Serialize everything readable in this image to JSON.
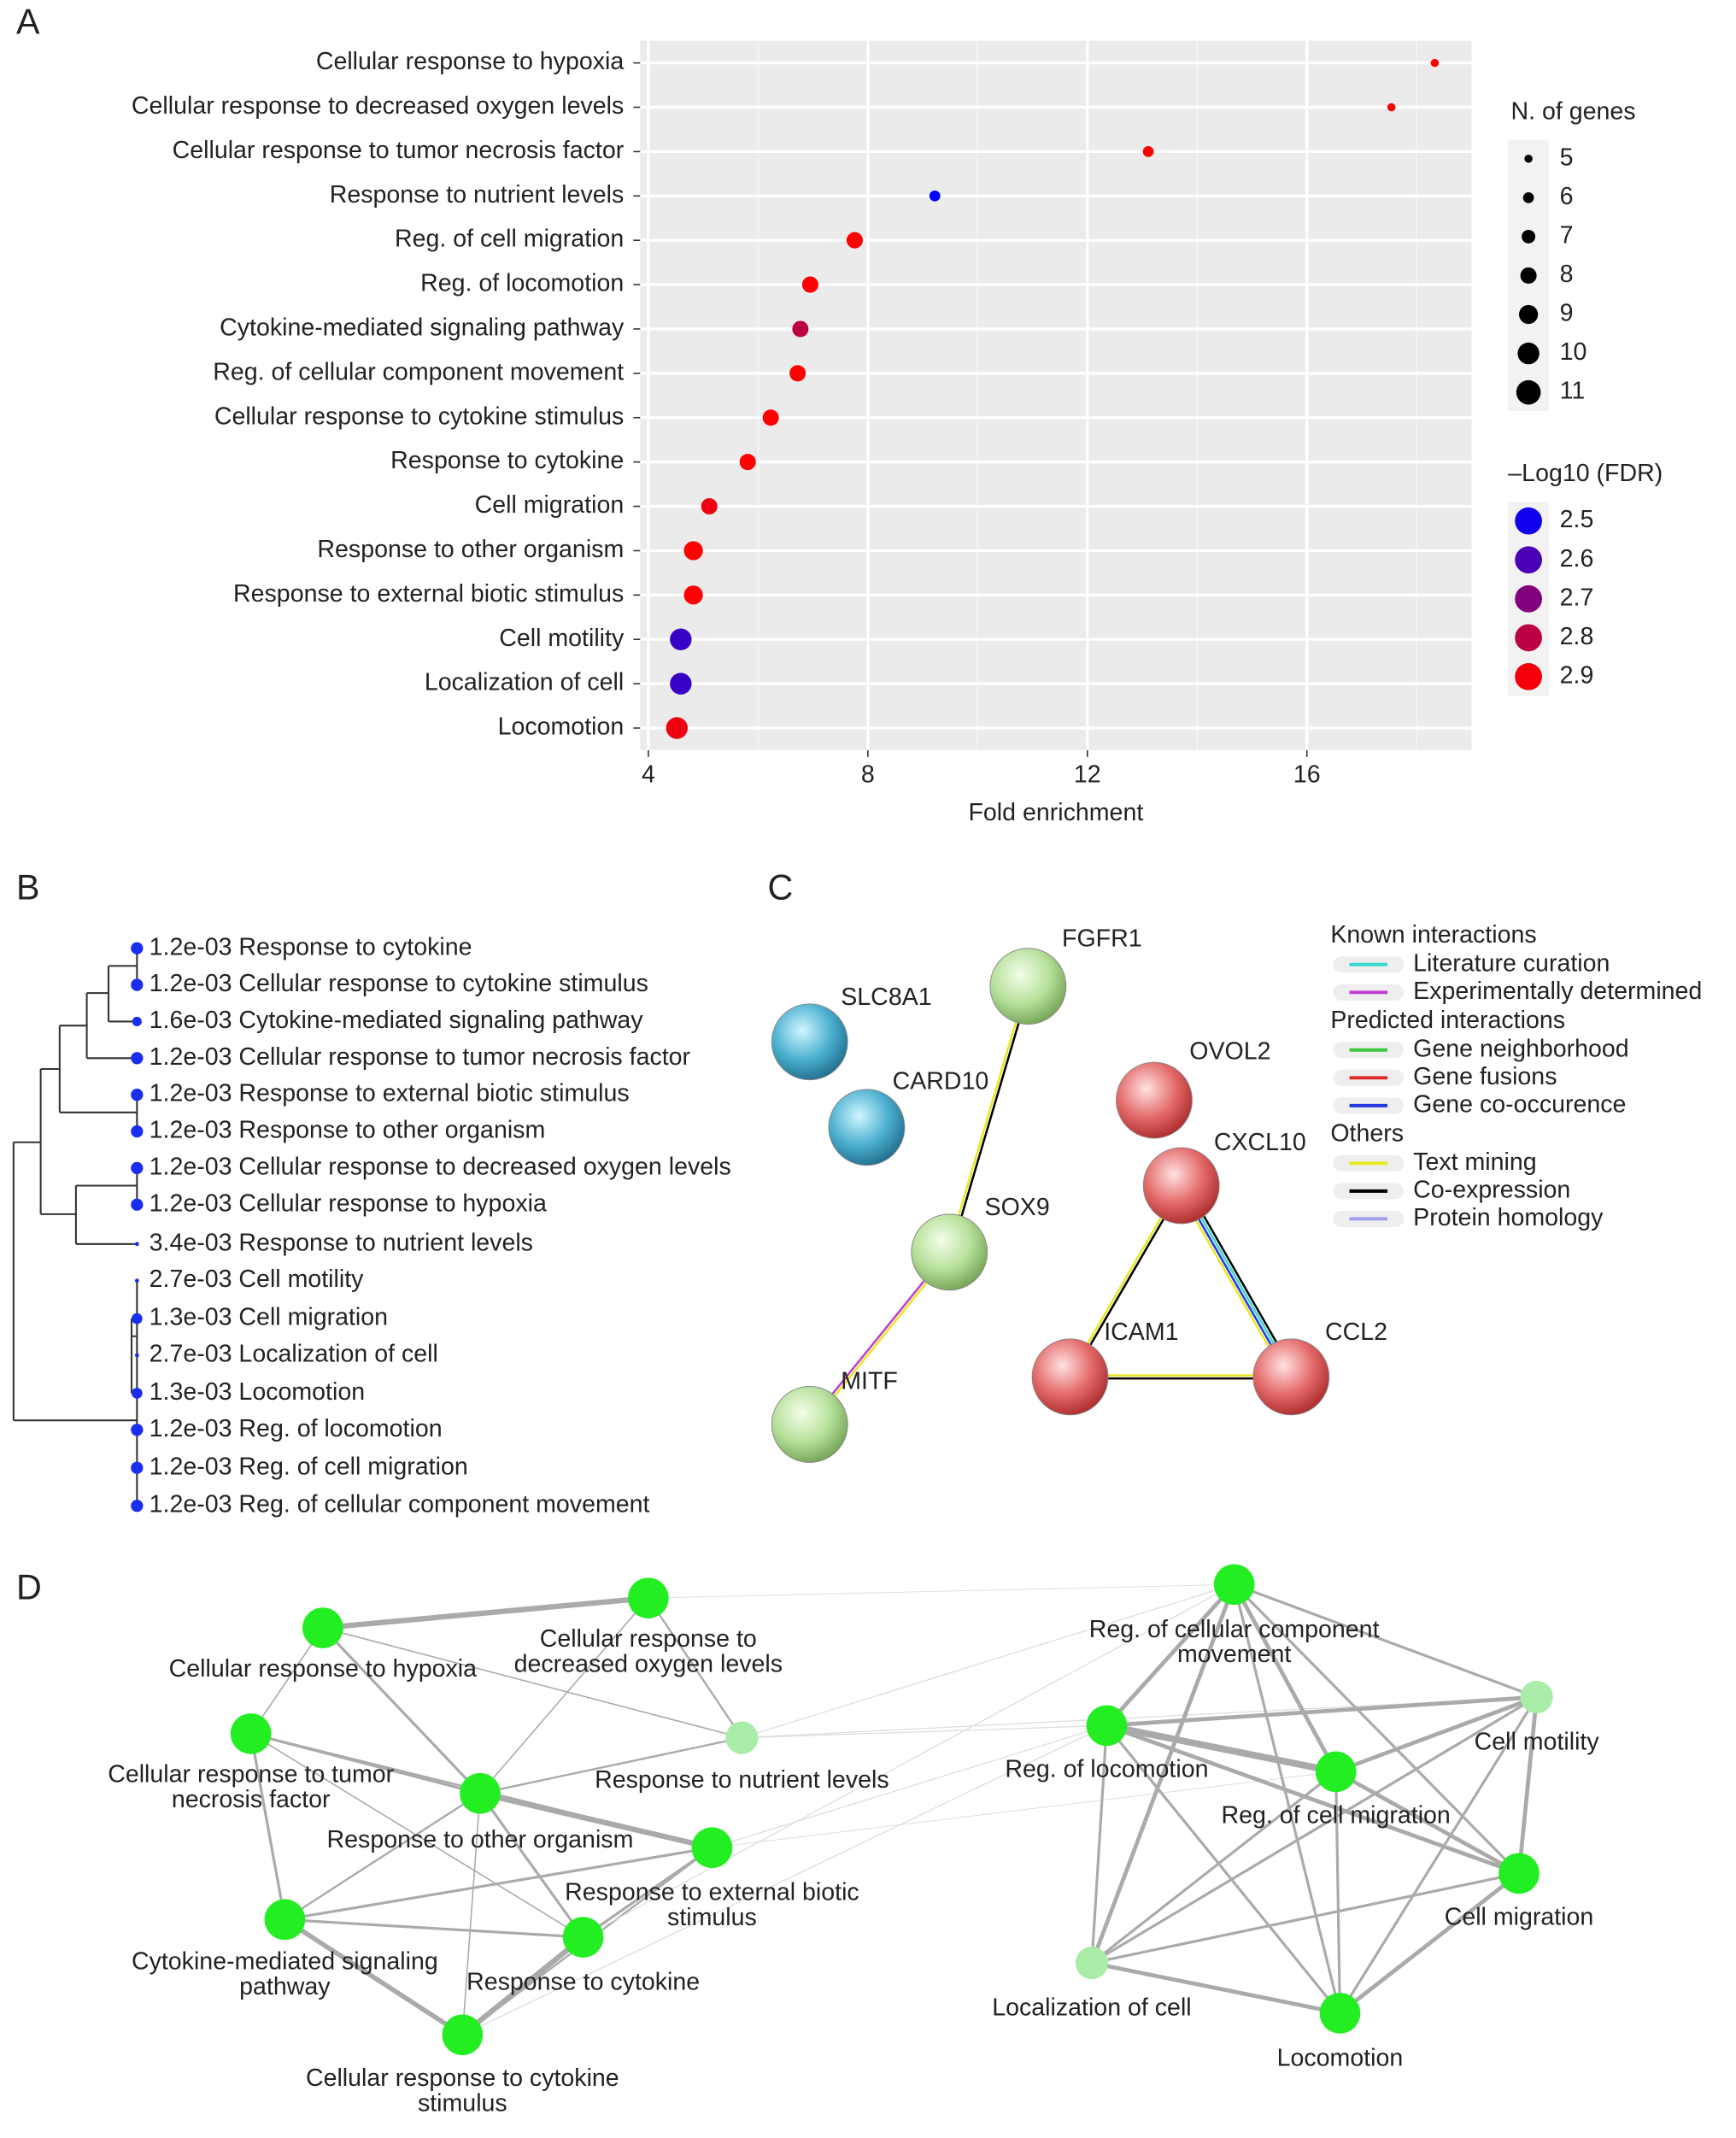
{
  "panel_labels": [
    "A",
    "B",
    "C",
    "D"
  ],
  "chart_data": {
    "type": "dot",
    "categories": [
      "Cellular response to hypoxia",
      "Cellular response to decreased oxygen levels",
      "Cellular response to tumor necrosis factor",
      "Response to nutrient levels",
      "Reg. of cell migration",
      "Reg. of locomotion",
      "Cytokine-mediated signaling pathway",
      "Reg. of cellular component movement",
      "Cellular response to cytokine stimulus",
      "Response to cytokine",
      "Cell migration",
      "Response to other organism",
      "Response to external biotic stimulus",
      "Cell motility",
      "Localization of cell",
      "Locomotion"
    ],
    "x_label": "Fold enrichment",
    "values": [
      18.33,
      17.54,
      13.11,
      9.22,
      7.76,
      6.95,
      6.77,
      6.72,
      6.23,
      5.81,
      5.11,
      4.82,
      4.82,
      4.59,
      4.59,
      4.52
    ],
    "sizes": [
      5,
      5,
      6,
      6,
      8,
      8,
      8,
      8,
      8,
      8,
      8,
      9,
      9,
      10,
      10,
      10
    ],
    "color_values": [
      2.92,
      2.92,
      2.92,
      2.47,
      2.92,
      2.92,
      2.8,
      2.92,
      2.92,
      2.92,
      2.89,
      2.92,
      2.92,
      2.57,
      2.57,
      2.89
    ],
    "color_low": "#0000ff",
    "color_high": "#ff0000",
    "size_legend": {
      "title": "N. of genes",
      "values": [
        5,
        6,
        7,
        8,
        9,
        10,
        11
      ]
    },
    "color_legend": {
      "title": "–Log10 (FDR)",
      "values": [
        2.5,
        2.6,
        2.7,
        2.8,
        2.9
      ]
    },
    "xlim": [
      3.85,
      19.0
    ],
    "xticks": [
      4,
      8,
      12,
      16
    ],
    "grid": true
  },
  "dendrogram": {
    "leaves": [
      "1.2e-03 Response to cytokine",
      "1.2e-03 Cellular response to cytokine stimulus",
      "1.6e-03 Cytokine-mediated signaling pathway",
      "1.2e-03 Cellular response to tumor necrosis factor",
      "1.2e-03 Response to external biotic stimulus",
      "1.2e-03 Response to other organism",
      "1.2e-03 Cellular response to decreased oxygen levels",
      "1.2e-03 Cellular response to hypoxia",
      "3.4e-03 Response to nutrient levels",
      "2.7e-03 Cell motility",
      "1.3e-03 Cell migration",
      "2.7e-03 Localization of cell",
      "1.3e-03 Locomotion",
      "1.2e-03 Reg. of locomotion",
      "1.2e-03 Reg. of cell migration",
      "1.2e-03 Reg. of cellular component movement"
    ]
  },
  "string_network": {
    "nodes": [
      "FGFR1",
      "SLC8A1",
      "CARD10",
      "SOX9",
      "MITF",
      "OVOL2",
      "CXCL10",
      "ICAM1",
      "CCL2"
    ],
    "legend": [
      {
        "heading": "Known interactions",
        "items": [
          {
            "label": "Literature curation",
            "color": "#38d8d0"
          },
          {
            "label": "Experimentally determined",
            "color": "#c03cd0"
          }
        ]
      },
      {
        "heading": "Predicted interactions",
        "items": [
          {
            "label": "Gene neighborhood",
            "color": "#3cc83c"
          },
          {
            "label": "Gene fusions",
            "color": "#e02828"
          },
          {
            "label": "Gene co-occurence",
            "color": "#2838e0"
          }
        ]
      },
      {
        "heading": "Others",
        "items": [
          {
            "label": "Text mining",
            "color": "#e8e820"
          },
          {
            "label": "Co-expression",
            "color": "#000000"
          },
          {
            "label": "Protein homology",
            "color": "#a0a0f0"
          }
        ]
      }
    ]
  },
  "term_network": {
    "nodes": [
      {
        "label_lines": [
          "Cellular response to hypoxia"
        ]
      },
      {
        "label_lines": [
          "Cellular response to",
          "decreased oxygen levels"
        ]
      },
      {
        "label_lines": [
          "Cellular response to tumor",
          "necrosis factor"
        ]
      },
      {
        "label_lines": [
          "Response to other organism"
        ]
      },
      {
        "label_lines": [
          "Response to nutrient levels"
        ]
      },
      {
        "label_lines": [
          "Response to external biotic",
          "stimulus"
        ]
      },
      {
        "label_lines": [
          "Cytokine-mediated signaling",
          "pathway"
        ]
      },
      {
        "label_lines": [
          "Response to cytokine"
        ]
      },
      {
        "label_lines": [
          "Cellular response to cytokine",
          "stimulus"
        ]
      },
      {
        "label_lines": [
          "Reg. of cellular component",
          "movement"
        ]
      },
      {
        "label_lines": [
          "Cell motility"
        ]
      },
      {
        "label_lines": [
          "Reg. of locomotion"
        ]
      },
      {
        "label_lines": [
          "Reg. of cell migration"
        ]
      },
      {
        "label_lines": [
          "Cell migration"
        ]
      },
      {
        "label_lines": [
          "Localization of cell"
        ]
      },
      {
        "label_lines": [
          "Locomotion"
        ]
      }
    ]
  }
}
